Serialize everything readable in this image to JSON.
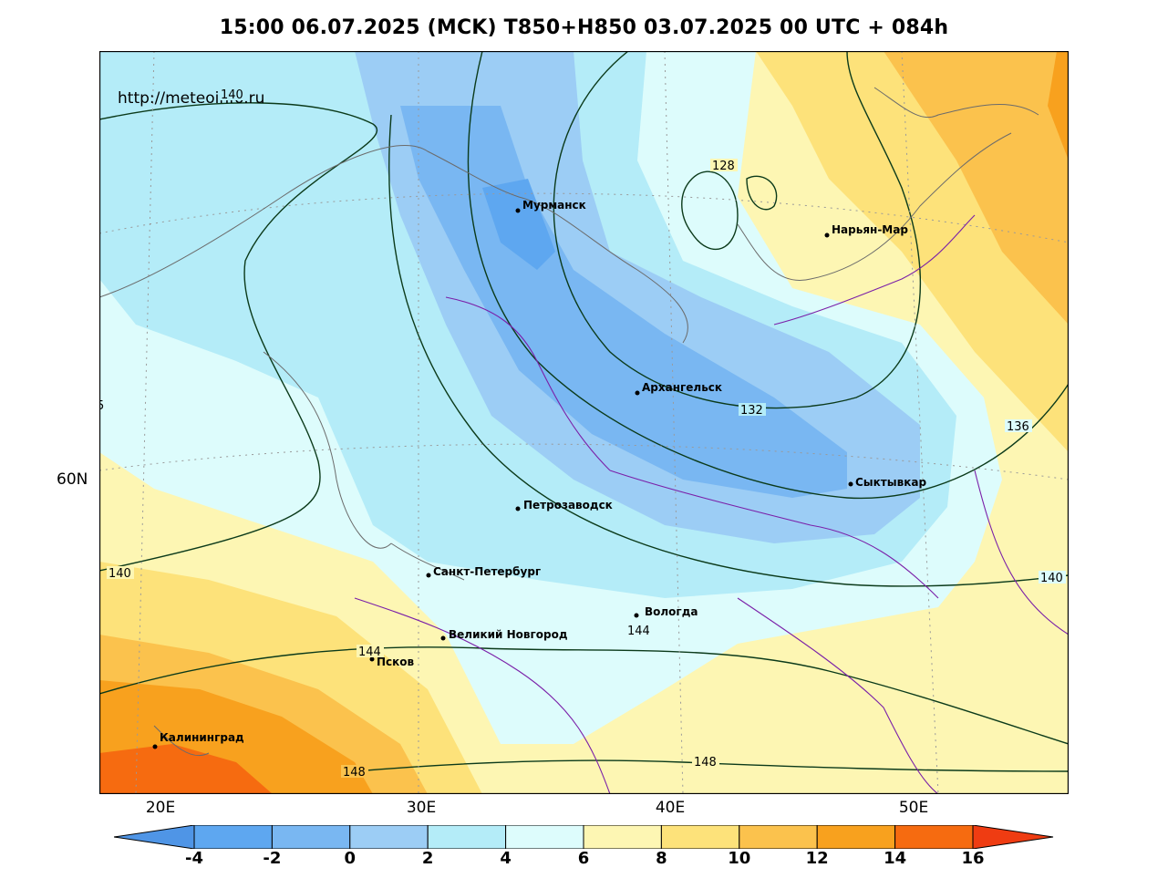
{
  "title": "15:00 06.07.2025 (MCK) T850+H850 03.07.2025 00 UTC + 084h",
  "watermark": "http://meteoinfo.ru",
  "lat_label": "60N",
  "lon_labels": [
    "20E",
    "30E",
    "40E",
    "50E"
  ],
  "cities": [
    {
      "name": "Мурманск"
    },
    {
      "name": "Нарьян-Мар"
    },
    {
      "name": "Архангельск"
    },
    {
      "name": "Сыктывкар"
    },
    {
      "name": "Петрозаводск"
    },
    {
      "name": "Санкт-Петербург"
    },
    {
      "name": "Вологда"
    },
    {
      "name": "Великий Новгород"
    },
    {
      "name": "Псков"
    },
    {
      "name": "Калининград"
    }
  ],
  "contour_labels": [
    "140",
    "128",
    "132",
    "136",
    "140",
    "140",
    "144",
    "144",
    "148",
    "148"
  ],
  "edge_fragment": "5",
  "colorbar": {
    "colors": [
      "#4f95e6",
      "#5ea7f0",
      "#79b7f2",
      "#9ccdf5",
      "#b4ecf8",
      "#ddfcfc",
      "#fdf6b3",
      "#fde27a",
      "#fbc24d",
      "#f8a11e",
      "#f66b10",
      "#ef3c12"
    ],
    "labels": [
      "-4",
      "-2",
      "0",
      "2",
      "4",
      "6",
      "8",
      "10",
      "12",
      "14",
      "16"
    ]
  }
}
